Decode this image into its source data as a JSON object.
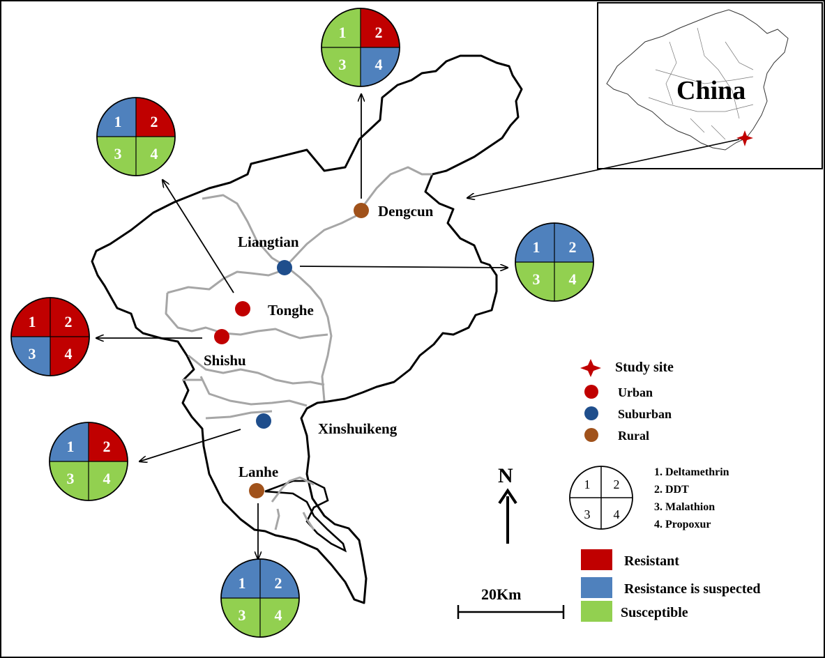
{
  "inset": {
    "country_label": "China"
  },
  "north": {
    "label": "N"
  },
  "scale_bar": {
    "label": "20Km"
  },
  "sites": [
    {
      "id": "dengcun",
      "name": "Dengcun",
      "type": "rural",
      "results": [
        "susceptible",
        "resistant",
        "susceptible",
        "suspected"
      ]
    },
    {
      "id": "liangtian",
      "name": "Liangtian",
      "type": "suburban",
      "results": [
        "suspected",
        "suspected",
        "susceptible",
        "susceptible"
      ]
    },
    {
      "id": "tonghe",
      "name": "Tonghe",
      "type": "urban",
      "results": [
        "suspected",
        "resistant",
        "susceptible",
        "susceptible"
      ]
    },
    {
      "id": "shishu",
      "name": "Shishu",
      "type": "urban",
      "results": [
        "resistant",
        "resistant",
        "suspected",
        "resistant"
      ]
    },
    {
      "id": "xinshuikeng",
      "name": "Xinshuikeng",
      "type": "suburban",
      "results": [
        "suspected",
        "resistant",
        "susceptible",
        "susceptible"
      ]
    },
    {
      "id": "lanhe",
      "name": "Lanhe",
      "type": "rural",
      "results": [
        "suspected",
        "suspected",
        "susceptible",
        "susceptible"
      ]
    }
  ],
  "quadrant_numbers": [
    "1",
    "2",
    "3",
    "4"
  ],
  "legend": {
    "study_site": "Study site",
    "urban": "Urban",
    "suburban": "Suburban",
    "rural": "Rural",
    "insecticides": [
      "1. Deltamethrin",
      "2. DDT",
      "3. Malathion",
      "4. Propoxur"
    ],
    "resistant": "Resistant",
    "suspected": "Resistance is suspected",
    "susceptible": "Susceptible"
  },
  "colors": {
    "resistant": "#c00000",
    "suspected": "#4f81bd",
    "susceptible": "#92d050",
    "urban": "#c00000",
    "suburban": "#1f4e8c",
    "rural": "#a0521b",
    "star": "#c00000"
  }
}
